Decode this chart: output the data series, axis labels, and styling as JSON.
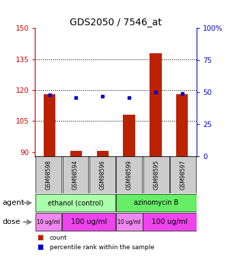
{
  "title": "GDS2050 / 7546_at",
  "samples": [
    "GSM98598",
    "GSM98594",
    "GSM98596",
    "GSM98599",
    "GSM98595",
    "GSM98597"
  ],
  "counts": [
    118,
    90.5,
    90.5,
    108,
    138,
    118
  ],
  "percentile_ranks": [
    48,
    46,
    47,
    46,
    50,
    49
  ],
  "ylim_left": [
    88,
    150
  ],
  "ylim_right": [
    0,
    100
  ],
  "left_ticks": [
    90,
    105,
    120,
    135,
    150
  ],
  "right_ticks": [
    0,
    25,
    50,
    75,
    100
  ],
  "hlines": [
    105,
    120,
    135
  ],
  "agent_groups": [
    {
      "label": "ethanol (control)",
      "color": "#aaffaa",
      "start": 0,
      "end": 3
    },
    {
      "label": "azinomycin B",
      "color": "#66ee66",
      "start": 3,
      "end": 6
    }
  ],
  "dose_groups": [
    {
      "label": "10 ug/ml",
      "color": "#ee88ee",
      "start": 0,
      "end": 1,
      "fontsize": 5.5
    },
    {
      "label": "100 ug/ml",
      "color": "#ee44ee",
      "start": 1,
      "end": 3,
      "fontsize": 7.5
    },
    {
      "label": "10 ug/ml",
      "color": "#ee88ee",
      "start": 3,
      "end": 4,
      "fontsize": 5.5
    },
    {
      "label": "100 ug/ml",
      "color": "#ee44ee",
      "start": 4,
      "end": 6,
      "fontsize": 7.5
    }
  ],
  "bar_color": "#bb2200",
  "dot_color": "#0000cc",
  "sample_bg_color": "#cccccc",
  "title_fontsize": 10,
  "left_axis_color": "#cc0000",
  "right_axis_color": "#0000cc",
  "bar_width": 0.45
}
